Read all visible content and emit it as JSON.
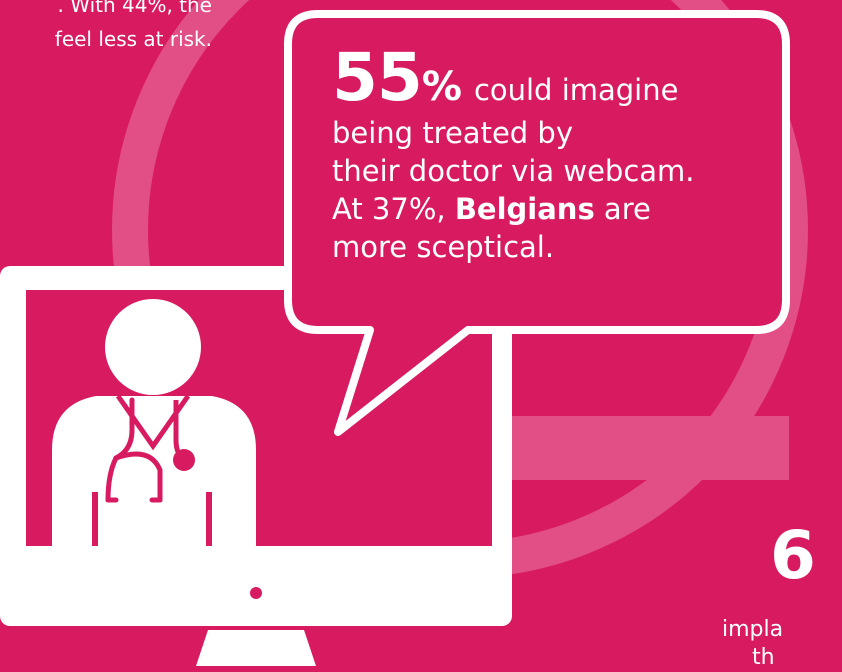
{
  "top_left_note": {
    "line1": ". With 44%, the",
    "line2": "feel less at risk."
  },
  "speech_bubble": {
    "percent_number": "55",
    "percent_sign": "%",
    "line1_rest": "could imagine",
    "line2": "being treated by",
    "line3": "their doctor via webcam.",
    "line4_prefix": "At 37%,",
    "line4_bold": "Belgians",
    "line4_suffix": "are",
    "line5": "more sceptical."
  },
  "bottom_right_note": {
    "big_glyph": "6",
    "line1": "impla",
    "line2": "th"
  },
  "icons": {
    "monitor": "computer-monitor-icon",
    "doctor": "doctor-with-stethoscope-icon",
    "bubble": "speech-bubble"
  },
  "colors": {
    "background": "#d81b60",
    "foreground": "#ffffff",
    "accent_light": "#e24e86"
  }
}
